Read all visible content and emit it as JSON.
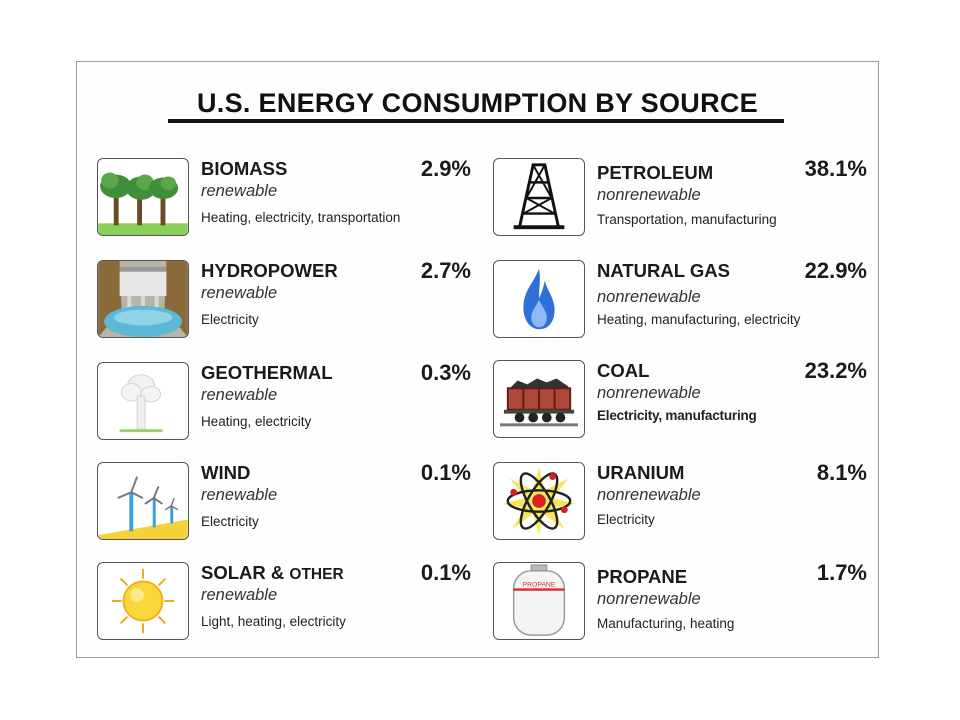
{
  "title": "U.S. ENERGY CONSUMPTION BY SOURCE",
  "sources_left": [
    {
      "name": "BIOMASS",
      "type": "renewable",
      "uses": "Heating, electricity, transportation",
      "percent": "2.9%",
      "icon": "trees-icon"
    },
    {
      "name": "HYDROPOWER",
      "type": "renewable",
      "uses": "Electricity",
      "percent": "2.7%",
      "icon": "dam-icon"
    },
    {
      "name": "GEOTHERMAL",
      "type": "renewable",
      "uses": "Heating, electricity",
      "percent": "0.3%",
      "icon": "geyser-icon"
    },
    {
      "name": "WIND",
      "type": "renewable",
      "uses": "Electricity",
      "percent": "0.1%",
      "icon": "wind-turbine-icon"
    },
    {
      "name_main": "SOLAR & ",
      "name_small": "OTHER",
      "type": "renewable",
      "uses": "Light, heating, electricity",
      "percent": "0.1%",
      "icon": "sun-icon"
    }
  ],
  "sources_right": [
    {
      "name": "PETROLEUM",
      "type": "nonrenewable",
      "uses": "Transportation, manufacturing",
      "percent": "38.1%",
      "icon": "oil-derrick-icon"
    },
    {
      "name": "NATURAL GAS",
      "type": "nonrenewable",
      "uses": "Heating, manufacturing, electricity",
      "percent": "22.9%",
      "icon": "gas-flame-icon"
    },
    {
      "name": "COAL",
      "type": "nonrenewable",
      "uses": "Electricity, manufacturing",
      "percent": "23.2%",
      "icon": "coal-car-icon"
    },
    {
      "name": "URANIUM",
      "type": "nonrenewable",
      "uses": "Electricity",
      "percent": "8.1%",
      "icon": "atom-icon"
    },
    {
      "name": "PROPANE",
      "type": "nonrenewable",
      "uses": "Manufacturing, heating",
      "percent": "1.7%",
      "icon": "propane-tank-icon"
    }
  ],
  "propane_tank_label": "PROPANE",
  "colors": {
    "text": "#1a1a1a",
    "frame_border": "#9a9a9a",
    "icon_border": "#555555"
  }
}
